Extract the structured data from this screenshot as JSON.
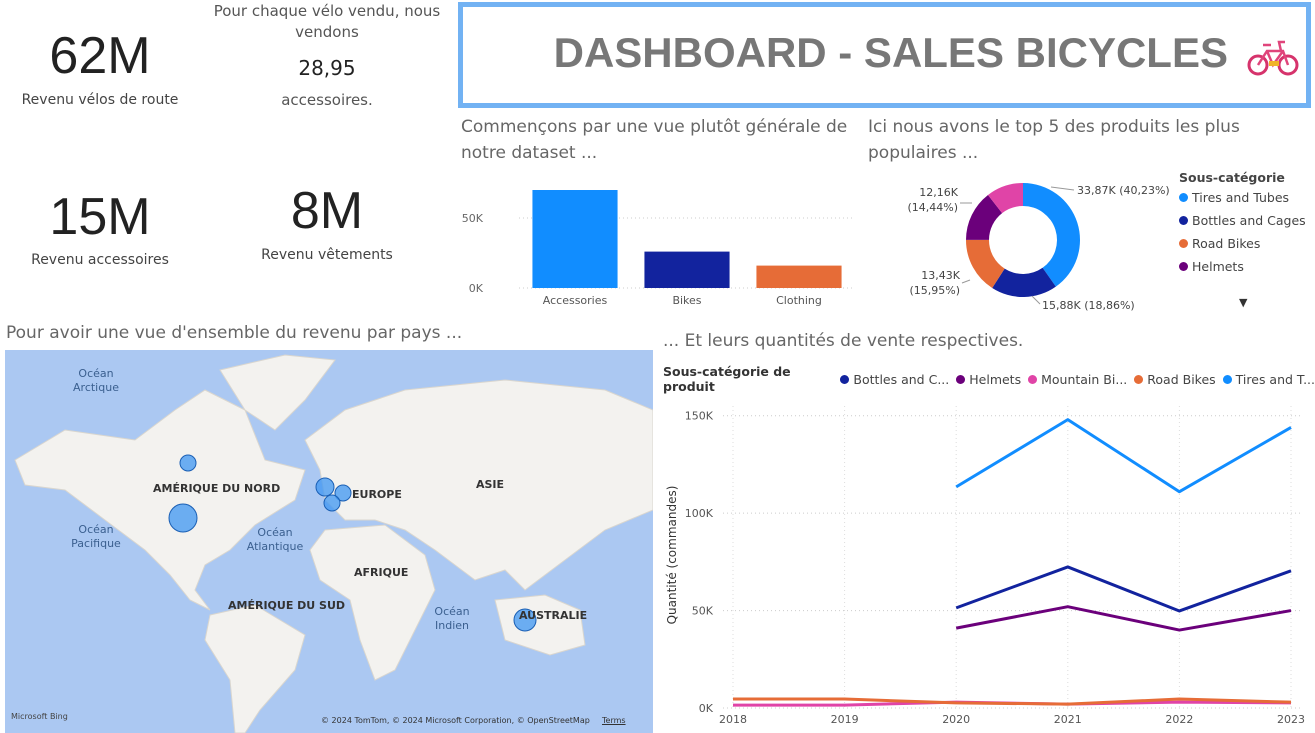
{
  "header": {
    "title": "DASHBOARD - SALES BICYCLES"
  },
  "kpis": [
    {
      "value": "62M",
      "label": "Revenu vélos de route"
    },
    {
      "value": "15M",
      "label": "Revenu accessoires"
    },
    {
      "value": "8M",
      "label": "Revenu vêtements"
    }
  ],
  "ratio_card": {
    "text_before": "Pour chaque vélo vendu, nous vendons",
    "value": "28,95",
    "text_after": "accessoires."
  },
  "map": {
    "title": "Pour avoir une vue d'ensemble du revenu par pays ...",
    "labels": [
      "Océan Arctique",
      "AMÉRIQUE DU NORD",
      "EUROPE",
      "ASIE",
      "Océan Pacifique",
      "Océan Atlantique",
      "AFRIQUE",
      "AMÉRIQUE DU SUD",
      "Océan Indien",
      "AUSTRALIE"
    ],
    "provider": "Microsoft Bing",
    "attribution": "© 2024 TomTom, © 2024 Microsoft Corporation, © OpenStreetMap",
    "terms": "Terms"
  },
  "chart_data": [
    {
      "type": "bar",
      "title": "Commençons par une vue plutôt générale de notre dataset ...",
      "categories": [
        "Accessories",
        "Bikes",
        "Clothing"
      ],
      "values": [
        70000,
        26000,
        16000
      ],
      "colors": [
        "#118dff",
        "#12239e",
        "#e66c37"
      ],
      "ylim": [
        0,
        75000
      ],
      "yticks": [
        {
          "value": 0,
          "label": "0K"
        },
        {
          "value": 50000,
          "label": "50K"
        }
      ],
      "grid": true
    },
    {
      "type": "pie",
      "title": "Ici nous avons le top 5 des produits les plus populaires ...",
      "donut": true,
      "legend_title": "Sous-catégorie",
      "categories": [
        "Tires and Tubes",
        "Bottles and Cages",
        "Road Bikes",
        "Helmets",
        null
      ],
      "values": [
        33870,
        15880,
        13430,
        12160,
        8860
      ],
      "value_labels": [
        "33,87K (40,23%)",
        "15,88K (18,86%)",
        "13,43K (15,95%)",
        "12,16K (14,44%)",
        null
      ],
      "colors": [
        "#118dff",
        "#12239e",
        "#e66c37",
        "#6b007b",
        "#e044a7"
      ]
    },
    {
      "type": "line",
      "title": "... Et leurs quantités de vente respectives.",
      "legend_title": "Sous-catégorie de produit",
      "y_label": "Quantité (commandes)",
      "categories": [
        "2018",
        "2019",
        "2020",
        "2021",
        "2022",
        "2023"
      ],
      "series": [
        {
          "name": "Bottles and C...",
          "color": "#12239e",
          "values": [
            null,
            null,
            51400,
            72400,
            49800,
            70400
          ]
        },
        {
          "name": "Helmets",
          "color": "#6b007b",
          "values": [
            null,
            null,
            41000,
            52000,
            40000,
            50000
          ]
        },
        {
          "name": "Mountain Bi...",
          "color": "#e044a7",
          "values": [
            1500,
            1500,
            3000,
            2000,
            3000,
            2600
          ]
        },
        {
          "name": "Road Bikes",
          "color": "#e66c37",
          "values": [
            4600,
            4600,
            2600,
            2000,
            4600,
            3000
          ]
        },
        {
          "name": "Tires and T...",
          "color": "#118dff",
          "values": [
            null,
            null,
            113500,
            148000,
            111000,
            144000
          ]
        }
      ],
      "ylim": [
        0,
        155000
      ],
      "yticks": [
        {
          "value": 0,
          "label": "0K"
        },
        {
          "value": 50000,
          "label": "50K"
        },
        {
          "value": 100000,
          "label": "100K"
        },
        {
          "value": 150000,
          "label": "150K"
        }
      ],
      "grid": true
    }
  ]
}
